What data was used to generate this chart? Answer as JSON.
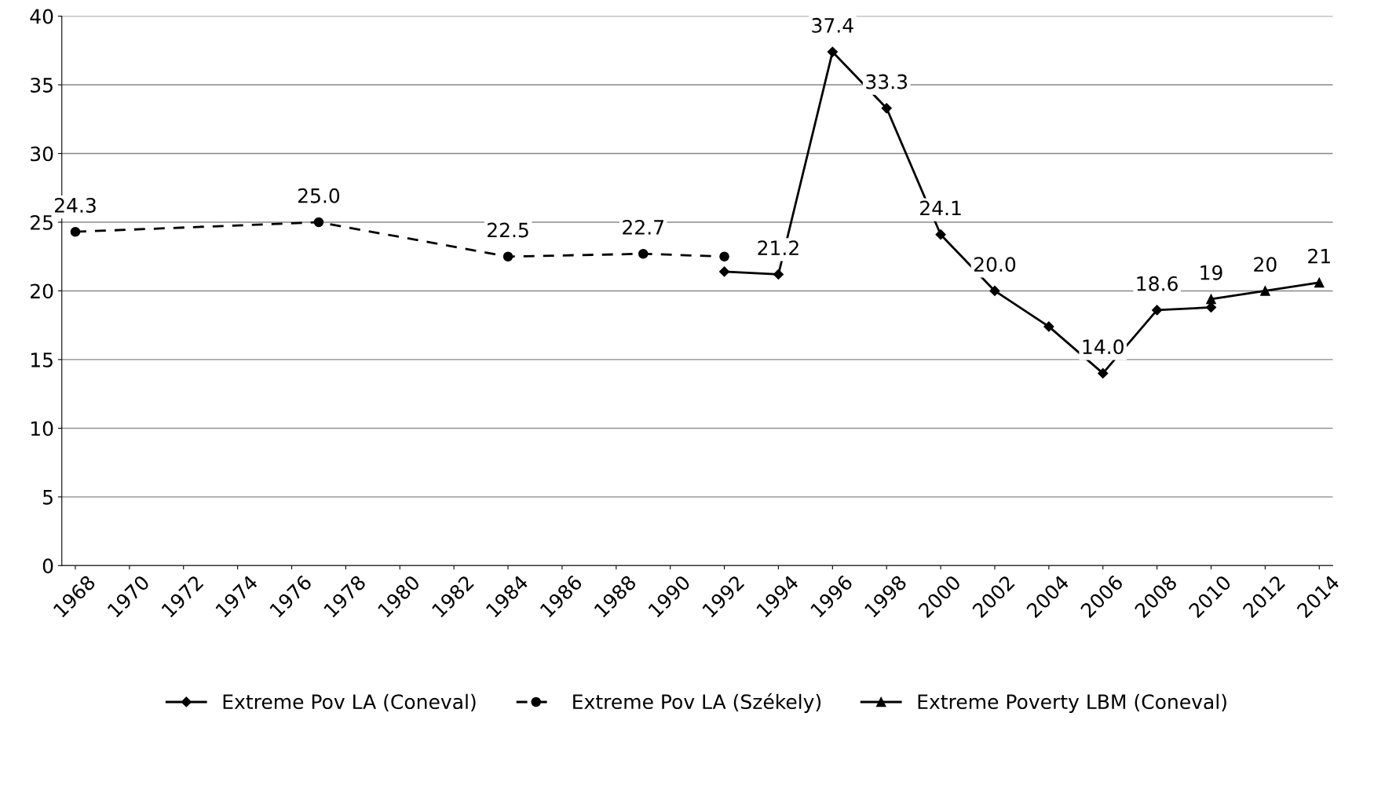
{
  "chart_data": {
    "type": "line",
    "series": [
      {
        "name": "Extreme Pov LA (Coneval)",
        "color": "#000000",
        "marker": "diamond",
        "line_style": "solid",
        "x": [
          1992,
          1994,
          1996,
          1998,
          2000,
          2002,
          2004,
          2006,
          2008,
          2010
        ],
        "values": [
          21.4,
          21.2,
          37.4,
          33.3,
          24.1,
          20.0,
          17.4,
          14.0,
          18.6,
          18.8
        ],
        "value_labels": [
          null,
          "21.2",
          "37.4",
          "33.3",
          "24.1",
          "20.0",
          null,
          "14.0",
          "18.6",
          null
        ]
      },
      {
        "name": "Extreme Pov LA (Székely)",
        "color": "#000000",
        "marker": "circle",
        "line_style": "dashed",
        "x": [
          1968,
          1977,
          1984,
          1989,
          1992
        ],
        "values": [
          24.3,
          25.0,
          22.5,
          22.7,
          22.5
        ],
        "value_labels": [
          "24.3",
          "25.0",
          "22.5",
          "22.7",
          null
        ]
      },
      {
        "name": "Extreme Poverty LBM (Coneval)",
        "color": "#000000",
        "marker": "triangle",
        "line_style": "solid",
        "x": [
          2010,
          2012,
          2014
        ],
        "values": [
          19.4,
          20.0,
          20.6
        ],
        "value_labels": [
          "19",
          "20",
          "21"
        ]
      }
    ],
    "xlim": [
      1967.5,
      2014.5
    ],
    "xticks": [
      1968,
      1970,
      1972,
      1974,
      1976,
      1978,
      1980,
      1982,
      1984,
      1986,
      1988,
      1990,
      1992,
      1994,
      1996,
      1998,
      2000,
      2002,
      2004,
      2006,
      2008,
      2010,
      2012,
      2014
    ],
    "ylim": [
      0,
      40
    ],
    "yticks": [
      0,
      5,
      10,
      15,
      20,
      25,
      30,
      35,
      40
    ],
    "grid": "y",
    "legend": "bottom"
  }
}
